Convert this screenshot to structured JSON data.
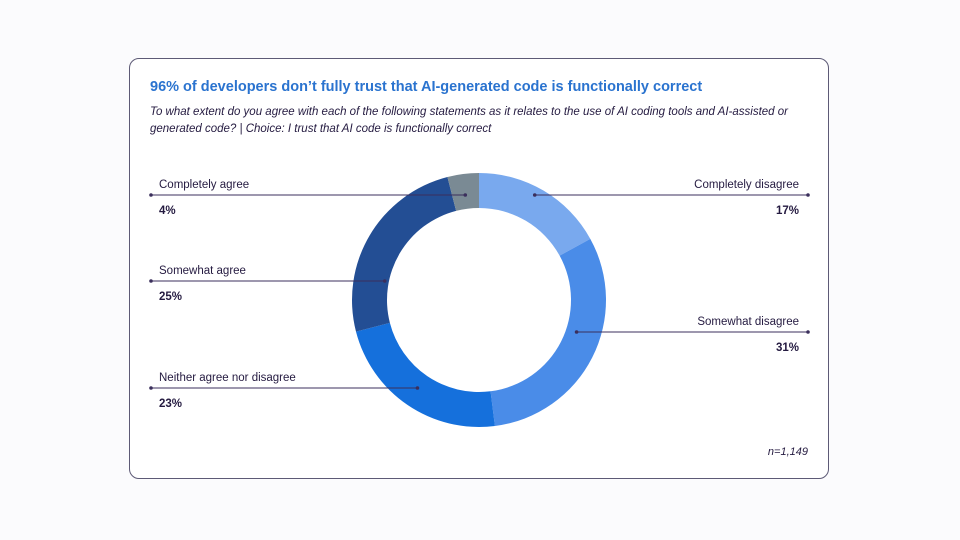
{
  "title": "96% of developers don’t fully trust that AI-generated code is functionally correct",
  "subtitle": "To what extent do you agree with each of the following statements as it relates to the use of AI coding tools and AI-assisted or generated code? | Choice: I trust that AI code is functionally correct",
  "sample_note": "n=1,149",
  "chart_data": {
    "type": "pie",
    "donut": true,
    "slices": [
      {
        "label": "Completely disagree",
        "value": 17,
        "display": "17%",
        "color": "#79a9ee",
        "side": "right"
      },
      {
        "label": "Somewhat disagree",
        "value": 31,
        "display": "31%",
        "color": "#4a8ce8",
        "side": "right"
      },
      {
        "label": "Neither agree nor disagree",
        "value": 23,
        "display": "23%",
        "color": "#1570dc",
        "side": "left"
      },
      {
        "label": "Somewhat agree",
        "value": 25,
        "display": "25%",
        "color": "#234e94",
        "side": "left"
      },
      {
        "label": "Completely agree",
        "value": 4,
        "display": "4%",
        "color": "#7a8a94",
        "side": "left"
      }
    ]
  }
}
